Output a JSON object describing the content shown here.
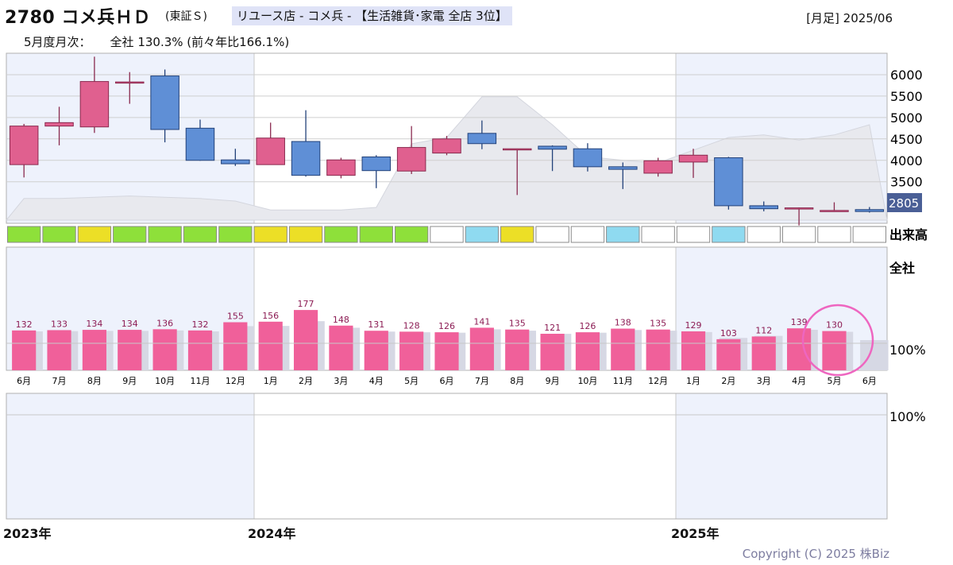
{
  "header": {
    "code_name": "2780 コメ兵ＨＤ",
    "exchange": "(東証Ｓ)",
    "category": "リユース店 - コメ兵 - 【生活雑貨･家電 全店 3位】",
    "period": "[月足] 2025/06",
    "monthly_label": "5月度月次：",
    "monthly_value": "全社 130.3% (前々年比166.1%)"
  },
  "footer": {
    "copyright": "Copyright (C) 2025 株Biz",
    "years": [
      "2023年",
      "2024年",
      "2025年"
    ]
  },
  "panel_labels": {
    "volume": "出来高",
    "monthly_series": "全社",
    "pct_100_a": "100%",
    "pct_100_b": "100%",
    "last_price": "2805"
  },
  "colors": {
    "up_candle": "#e0608f",
    "down_candle": "#5f8fd6",
    "bar": "#f0609a",
    "bar_shadow": "#d6d8e4",
    "highlight_bg": "#eef2fc",
    "circle": "#ee66c0"
  },
  "chart_data": [
    {
      "type": "candlestick",
      "title": "月足",
      "categories": [
        "2023-06",
        "2023-07",
        "2023-08",
        "2023-09",
        "2023-10",
        "2023-11",
        "2023-12",
        "2024-01",
        "2024-02",
        "2024-03",
        "2024-04",
        "2024-05",
        "2024-06",
        "2024-07",
        "2024-08",
        "2024-09",
        "2024-10",
        "2024-11",
        "2024-12",
        "2025-01",
        "2025-02",
        "2025-03",
        "2025-04",
        "2025-05",
        "2025-06"
      ],
      "ohlc": [
        [
          3900,
          4850,
          3600,
          4800
        ],
        [
          4800,
          5250,
          4350,
          4880
        ],
        [
          4780,
          6420,
          4640,
          5840
        ],
        [
          5830,
          6060,
          5320,
          5830
        ],
        [
          5970,
          6120,
          4420,
          4720
        ],
        [
          4750,
          4950,
          3990,
          4000
        ],
        [
          4010,
          4270,
          3870,
          3920
        ],
        [
          3900,
          4880,
          3900,
          4520
        ],
        [
          4440,
          5170,
          3620,
          3650
        ],
        [
          3650,
          4060,
          3580,
          4010
        ],
        [
          4080,
          4120,
          3350,
          3760
        ],
        [
          3750,
          4800,
          3680,
          4300
        ],
        [
          4170,
          4570,
          4120,
          4500
        ],
        [
          4630,
          4930,
          4260,
          4390
        ],
        [
          4270,
          4270,
          3190,
          4270
        ],
        [
          4330,
          4350,
          3750,
          4260
        ],
        [
          4270,
          4400,
          3740,
          3850
        ],
        [
          3850,
          3950,
          3330,
          3790
        ],
        [
          3700,
          4060,
          3620,
          3990
        ],
        [
          3960,
          4270,
          3590,
          4120
        ],
        [
          4060,
          4080,
          2850,
          2940
        ],
        [
          2940,
          3040,
          2810,
          2870
        ],
        [
          2890,
          2900,
          2480,
          2890
        ],
        [
          2820,
          3020,
          2800,
          2830
        ],
        [
          2850,
          2910,
          2780,
          2805
        ]
      ],
      "yticks": [
        3500,
        4000,
        4500,
        5000,
        5500,
        6000
      ],
      "ylim": [
        2530,
        6500
      ],
      "last_price": 2805
    },
    {
      "type": "bar",
      "title": "全社",
      "categories": [
        "6月",
        "7月",
        "8月",
        "9月",
        "10月",
        "11月",
        "12月",
        "1月",
        "2月",
        "3月",
        "4月",
        "5月",
        "6月",
        "7月",
        "8月",
        "9月",
        "10月",
        "11月",
        "12月",
        "1月",
        "2月",
        "3月",
        "4月",
        "5月",
        "6月"
      ],
      "values": [
        132,
        133,
        134,
        134,
        136,
        132,
        155,
        156,
        177,
        148,
        131,
        128,
        126,
        141,
        135,
        121,
        126,
        138,
        135,
        129,
        103,
        112,
        139,
        130,
        null
      ],
      "reference_line": 100,
      "ylim": [
        0,
        220
      ]
    }
  ],
  "volume_levels": [
    "green",
    "green",
    "yellow",
    "green",
    "green",
    "green",
    "green",
    "yellow",
    "yellow",
    "green",
    "green",
    "green",
    "white",
    "cyan",
    "yellow",
    "white",
    "white",
    "cyan",
    "white",
    "white",
    "cyan",
    "white",
    "white",
    "white",
    "white"
  ]
}
